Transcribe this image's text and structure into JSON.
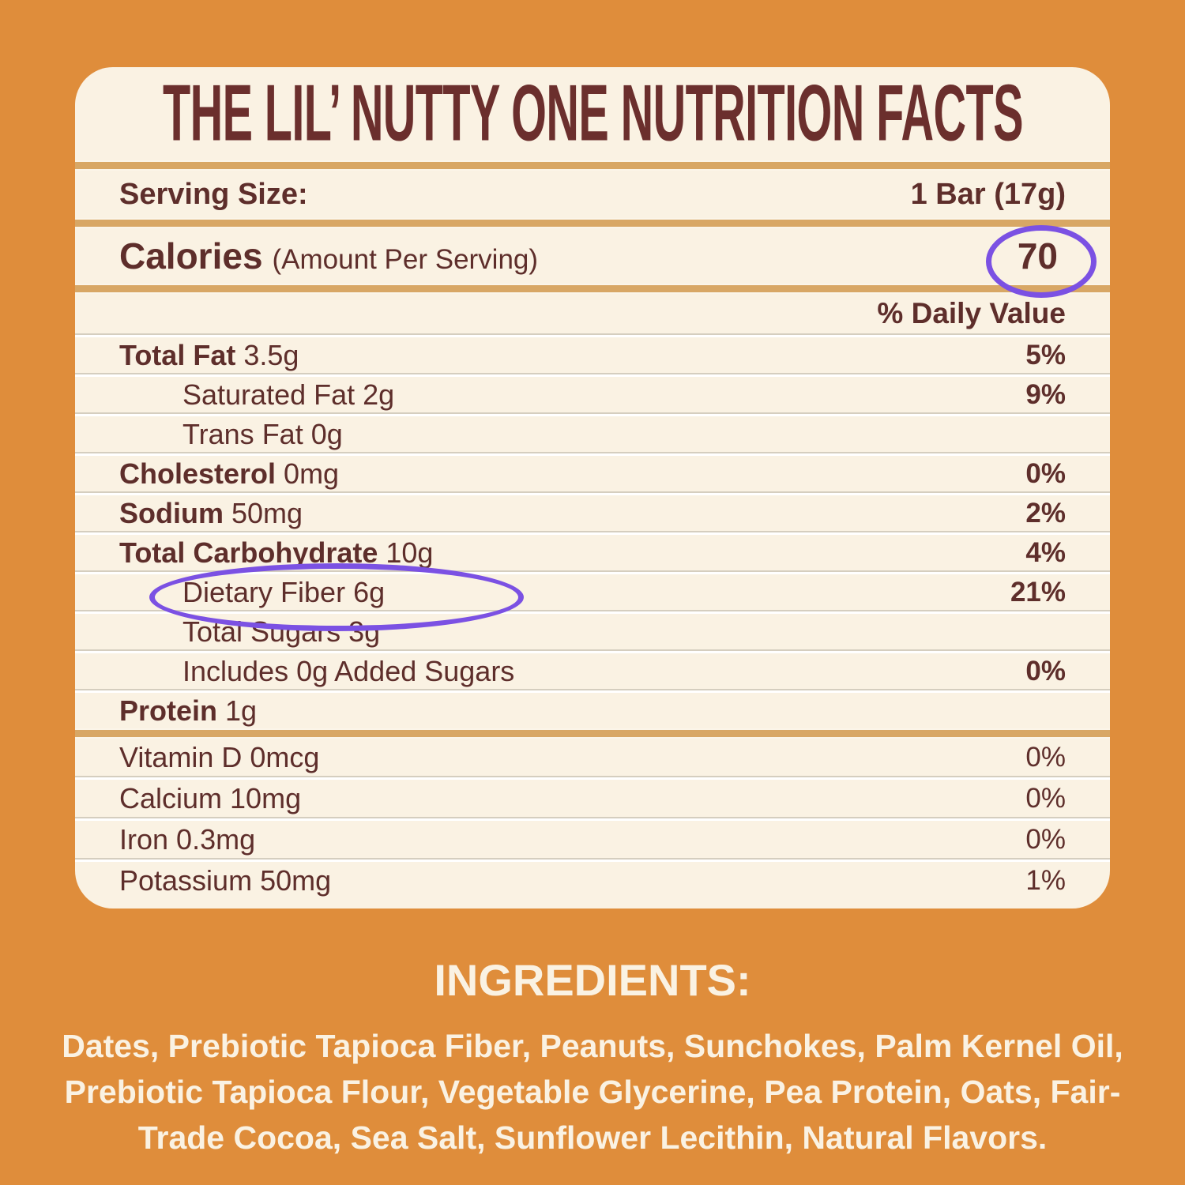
{
  "colors": {
    "background": "#DF8D3B",
    "panel": "#FAF2E3",
    "text": "#5E2E2B",
    "gold_divider": "#D8A765",
    "highlight_circle": "#7B51E3",
    "ingredients_text": "#FAF2E3"
  },
  "title": "THE LIL’ NUTTY ONE NUTRITION FACTS",
  "serving": {
    "label": "Serving Size:",
    "value": "1 Bar (17g)"
  },
  "calories": {
    "label": "Calories",
    "sublabel": "(Amount Per Serving)",
    "value": "70"
  },
  "daily_value_header": "% Daily Value",
  "rows": [
    {
      "name": "Total Fat",
      "amount": "3.5g",
      "dv": "5%"
    },
    {
      "name": "Saturated Fat",
      "amount": "2g",
      "dv": "9%"
    },
    {
      "name": "Trans Fat",
      "amount": "0g",
      "dv": ""
    },
    {
      "name": "Cholesterol",
      "amount": "0mg",
      "dv": "0%"
    },
    {
      "name": "Sodium",
      "amount": "50mg",
      "dv": "2%"
    },
    {
      "name": "Total Carbohydrate",
      "amount": "10g",
      "dv": "4%"
    },
    {
      "name": "Dietary Fiber",
      "amount": "6g",
      "dv": "21%"
    },
    {
      "name": "Total Sugars",
      "amount": "3g",
      "dv": ""
    },
    {
      "name": "Includes 0g Added Sugars",
      "amount": "",
      "dv": "0%"
    },
    {
      "name": "Protein",
      "amount": "1g",
      "dv": ""
    }
  ],
  "vitamins": [
    {
      "name": "Vitamin D",
      "amount": "0mcg",
      "dv": "0%"
    },
    {
      "name": "Calcium",
      "amount": "10mg",
      "dv": "0%"
    },
    {
      "name": "Iron",
      "amount": "0.3mg",
      "dv": "0%"
    },
    {
      "name": "Potassium",
      "amount": "50mg",
      "dv": "1%"
    }
  ],
  "ingredients": {
    "heading": "INGREDIENTS:",
    "text": "Dates, Prebiotic Tapioca Fiber, Peanuts, Sunchokes, Palm Kernel Oil, Prebiotic Tapioca Flour, Vegetable Glycerine, Pea Protein, Oats, Fair-Trade Cocoa, Sea Salt, Sunflower Lecithin, Natural Flavors."
  }
}
